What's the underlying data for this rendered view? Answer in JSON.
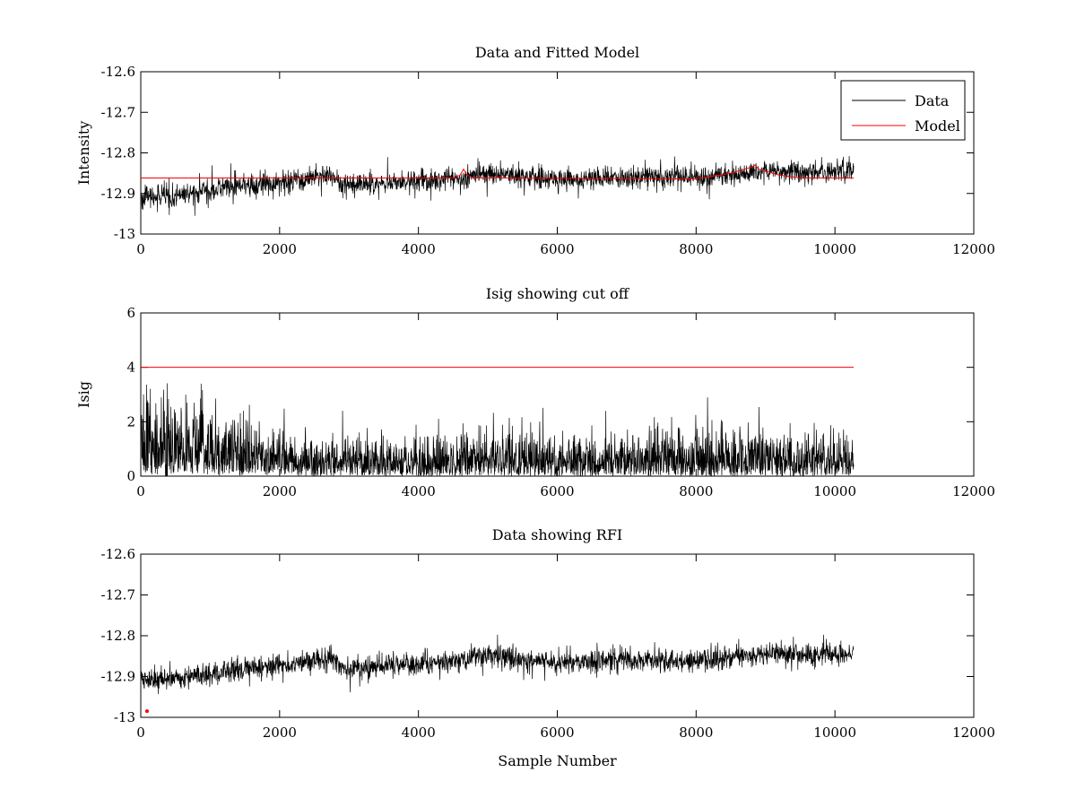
{
  "chart_data": [
    {
      "type": "line",
      "title": "Data and Fitted Model",
      "xlabel": "",
      "ylabel": "Intensity",
      "xlim": [
        0,
        12000
      ],
      "ylim": [
        -13,
        -12.6
      ],
      "xticks": [
        "0",
        "2000",
        "4000",
        "6000",
        "8000",
        "10000",
        "12000"
      ],
      "yticks": [
        "-12.6",
        "-12.7",
        "-12.8",
        "-12.9",
        "-13"
      ],
      "legend": {
        "position": "top-right",
        "entries": [
          "Data",
          "Model"
        ]
      },
      "colors": {
        "data": "#000000",
        "model": "#ff0000"
      },
      "series": [
        {
          "name": "Data",
          "kind": "noisy",
          "x_range": [
            0,
            10270
          ],
          "trend_x": [
            0,
            500,
            1200,
            2000,
            2600,
            2700,
            2900,
            3500,
            4000,
            4700,
            5000,
            6000,
            7000,
            8000,
            9000,
            10270
          ],
          "trend_y": [
            -12.91,
            -12.905,
            -12.885,
            -12.875,
            -12.86,
            -12.85,
            -12.88,
            -12.875,
            -12.87,
            -12.86,
            -12.85,
            -12.865,
            -12.86,
            -12.86,
            -12.845,
            -12.845
          ],
          "noise_amplitude": 0.03
        },
        {
          "name": "Model",
          "kind": "line",
          "x": [
            0,
            4500,
            4600,
            4650,
            4700,
            4800,
            5100,
            5150,
            5200,
            8000,
            8500,
            8800,
            8850,
            8900,
            9200,
            9500,
            10270
          ],
          "y": [
            -12.862,
            -12.862,
            -12.855,
            -12.84,
            -12.855,
            -12.862,
            -12.862,
            -12.858,
            -12.862,
            -12.864,
            -12.85,
            -12.835,
            -12.83,
            -12.84,
            -12.855,
            -12.862,
            -12.862
          ]
        }
      ]
    },
    {
      "type": "line",
      "title": "Isig showing cut off",
      "xlabel": "",
      "ylabel": "Isig",
      "xlim": [
        0,
        12000
      ],
      "ylim": [
        0,
        6
      ],
      "xticks": [
        "0",
        "2000",
        "4000",
        "6000",
        "8000",
        "10000",
        "12000"
      ],
      "yticks": [
        "0",
        "2",
        "4",
        "6"
      ],
      "colors": {
        "data": "#000000",
        "cutoff": "#ff0000"
      },
      "series": [
        {
          "name": "",
          "kind": "spiky",
          "x_range": [
            0,
            10270
          ],
          "level_x": [
            0,
            1500,
            2500,
            4500,
            5000,
            6000,
            7000,
            9000,
            10270
          ],
          "level_y": [
            1.6,
            1.0,
            0.7,
            0.7,
            0.9,
            0.7,
            0.8,
            0.8,
            0.8
          ],
          "peak_max": 3.6
        },
        {
          "name": "",
          "kind": "line",
          "x": [
            0,
            10270
          ],
          "y": [
            4,
            4
          ]
        }
      ]
    },
    {
      "type": "line",
      "title": "Data showing RFI",
      "xlabel": "Sample Number",
      "ylabel": "",
      "xlim": [
        0,
        12000
      ],
      "ylim": [
        -13,
        -12.6
      ],
      "xticks": [
        "0",
        "2000",
        "4000",
        "6000",
        "8000",
        "10000",
        "12000"
      ],
      "yticks": [
        "-12.6",
        "-12.7",
        "-12.8",
        "-12.9",
        "-13"
      ],
      "colors": {
        "data": "#000000",
        "rfi": "#ff0000"
      },
      "series": [
        {
          "name": "",
          "kind": "noisy",
          "x_range": [
            0,
            10270
          ],
          "trend_x": [
            0,
            500,
            1200,
            2000,
            2600,
            2700,
            2900,
            3500,
            4000,
            4700,
            5000,
            6000,
            7000,
            8000,
            9000,
            10270
          ],
          "trend_y": [
            -12.91,
            -12.905,
            -12.885,
            -12.875,
            -12.86,
            -12.85,
            -12.88,
            -12.875,
            -12.87,
            -12.86,
            -12.85,
            -12.865,
            -12.86,
            -12.86,
            -12.845,
            -12.845
          ],
          "noise_amplitude": 0.03
        },
        {
          "name": "",
          "kind": "points",
          "x": [
            90
          ],
          "y": [
            -12.985
          ]
        }
      ]
    }
  ]
}
